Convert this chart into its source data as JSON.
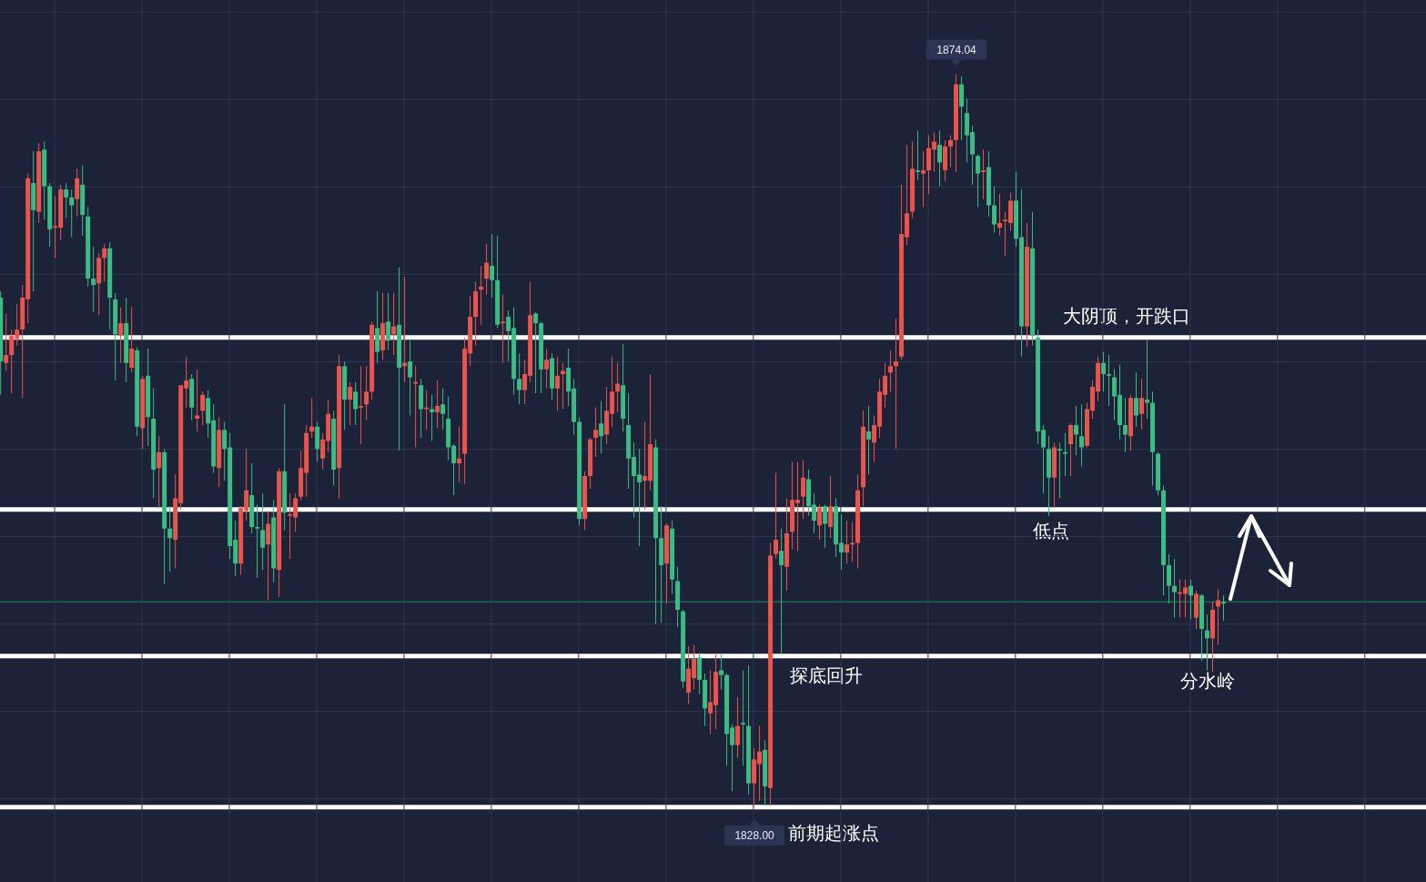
{
  "chart_data": {
    "type": "candlestick",
    "categories": [
      null,
      null,
      null,
      null,
      null,
      null,
      null,
      null,
      null,
      null,
      null,
      null,
      null,
      null,
      null,
      null,
      null,
      null,
      null,
      null,
      null,
      null,
      null,
      null,
      null,
      null,
      null,
      null,
      null,
      null,
      null,
      null,
      null,
      null,
      null,
      null,
      null,
      null,
      null,
      null,
      null,
      null,
      null,
      null,
      null,
      null,
      null,
      null,
      null,
      null,
      null,
      null,
      null,
      null,
      null,
      null,
      null,
      null,
      null,
      null,
      null,
      null,
      null,
      null,
      null,
      null,
      null,
      null,
      null,
      null,
      null,
      null,
      null,
      null,
      null,
      null,
      null,
      null,
      null,
      null,
      null,
      null,
      null,
      null,
      null,
      null,
      null,
      null,
      null,
      null,
      null,
      null,
      null,
      null,
      null,
      null,
      null,
      null,
      null,
      null,
      null,
      null,
      null,
      null,
      null,
      null,
      null,
      null,
      null,
      null,
      null,
      null,
      null,
      null,
      null,
      null,
      null,
      null,
      null,
      null,
      null,
      null,
      null,
      null,
      null,
      null,
      null,
      null,
      null,
      null,
      null,
      null,
      null,
      null,
      null,
      null,
      null,
      null,
      null,
      null,
      null,
      null,
      null,
      null,
      null,
      null,
      null,
      null,
      null,
      null,
      null,
      null,
      null,
      null,
      null,
      null,
      null,
      null,
      null,
      null,
      null,
      null,
      null,
      null,
      null,
      null,
      null,
      null,
      null,
      null,
      null,
      null,
      null,
      null,
      null,
      null,
      null,
      null,
      null,
      null,
      null,
      null,
      null,
      null,
      null,
      null,
      null,
      null,
      null,
      null,
      null,
      null,
      null,
      null,
      null,
      null,
      null,
      null,
      null,
      null,
      null,
      null,
      null,
      null,
      null,
      null,
      null,
      null,
      null,
      null,
      null,
      null,
      null,
      null,
      null,
      null,
      null,
      null,
      null,
      null,
      null,
      null,
      null,
      null,
      null
    ],
    "ohlc": [
      [
        1860.0,
        1860.4,
        1853.9,
        1856.0
      ],
      [
        1855.9,
        1859.0,
        1855.4,
        1856.4
      ],
      [
        1856.4,
        1858.0,
        1854.0,
        1857.6
      ],
      [
        1857.4,
        1859.6,
        1857.0,
        1858.0
      ],
      [
        1858.0,
        1860.8,
        1853.7,
        1860.0
      ],
      [
        1859.9,
        1867.8,
        1858.4,
        1867.5
      ],
      [
        1867.2,
        1869.2,
        1860.4,
        1865.5
      ],
      [
        1865.4,
        1869.7,
        1864.7,
        1869.2
      ],
      [
        1869.3,
        1869.8,
        1864.9,
        1867.0
      ],
      [
        1867.0,
        1867.2,
        1863.2,
        1864.3
      ],
      [
        1864.4,
        1866.4,
        1862.5,
        1864.5
      ],
      [
        1864.4,
        1867.1,
        1863.6,
        1866.8
      ],
      [
        1866.8,
        1867.2,
        1865.0,
        1866.3
      ],
      [
        1866.3,
        1866.8,
        1863.8,
        1865.8
      ],
      [
        1866.2,
        1868.1,
        1865.1,
        1867.5
      ],
      [
        1867.1,
        1868.3,
        1863.9,
        1865.2
      ],
      [
        1865.1,
        1865.7,
        1860.7,
        1861.2
      ],
      [
        1861.2,
        1863.2,
        1859.1,
        1860.8
      ],
      [
        1860.9,
        1862.8,
        1858.9,
        1862.5
      ],
      [
        1862.5,
        1863.4,
        1861.0,
        1863.1
      ],
      [
        1863.1,
        1863.5,
        1858.0,
        1860.0
      ],
      [
        1859.9,
        1860.3,
        1854.8,
        1857.7
      ],
      [
        1857.6,
        1859.4,
        1855.9,
        1858.4
      ],
      [
        1858.4,
        1860.0,
        1854.7,
        1855.9
      ],
      [
        1855.6,
        1859.4,
        1855.3,
        1856.8
      ],
      [
        1856.7,
        1856.9,
        1851.3,
        1851.9
      ],
      [
        1851.8,
        1855.1,
        1850.5,
        1854.9
      ],
      [
        1855.1,
        1856.8,
        1850.7,
        1852.5
      ],
      [
        1852.4,
        1854.3,
        1847.4,
        1849.2
      ],
      [
        1849.3,
        1851.3,
        1846.8,
        1850.3
      ],
      [
        1850.3,
        1850.5,
        1842.0,
        1845.5
      ],
      [
        1845.5,
        1846.9,
        1842.8,
        1844.9
      ],
      [
        1844.8,
        1848.9,
        1843.0,
        1847.4
      ],
      [
        1847.1,
        1854.5,
        1846.7,
        1854.5
      ],
      [
        1854.3,
        1856.3,
        1853.1,
        1854.8
      ],
      [
        1854.9,
        1855.2,
        1852.3,
        1853.1
      ],
      [
        1852.4,
        1855.5,
        1851.6,
        1852.6
      ],
      [
        1852.9,
        1854.1,
        1852.0,
        1853.9
      ],
      [
        1853.7,
        1854.2,
        1851.2,
        1852.1
      ],
      [
        1852.3,
        1853.3,
        1849.0,
        1849.4
      ],
      [
        1849.3,
        1852.5,
        1848.1,
        1851.7
      ],
      [
        1851.7,
        1852.2,
        1848.5,
        1850.5
      ],
      [
        1850.6,
        1851.5,
        1843.6,
        1844.4
      ],
      [
        1844.8,
        1846.0,
        1842.5,
        1843.3
      ],
      [
        1843.3,
        1846.9,
        1842.6,
        1846.8
      ],
      [
        1846.6,
        1850.5,
        1846.0,
        1847.9
      ],
      [
        1847.6,
        1849.6,
        1845.2,
        1845.6
      ],
      [
        1845.6,
        1847.0,
        1842.4,
        1845.5
      ],
      [
        1845.4,
        1847.7,
        1842.9,
        1844.3
      ],
      [
        1844.5,
        1846.6,
        1841.0,
        1845.8
      ],
      [
        1846.2,
        1847.3,
        1842.1,
        1843.0
      ],
      [
        1842.9,
        1849.3,
        1841.2,
        1849.1
      ],
      [
        1849.1,
        1853.3,
        1845.4,
        1846.5
      ],
      [
        1846.3,
        1847.7,
        1843.6,
        1846.4
      ],
      [
        1846.2,
        1847.7,
        1845.3,
        1847.4
      ],
      [
        1847.5,
        1850.4,
        1847.3,
        1849.3
      ],
      [
        1849.0,
        1852.0,
        1847.5,
        1851.5
      ],
      [
        1851.6,
        1853.7,
        1851.2,
        1851.9
      ],
      [
        1851.9,
        1852.2,
        1849.7,
        1850.5
      ],
      [
        1849.9,
        1851.5,
        1849.2,
        1851.1
      ],
      [
        1851.0,
        1853.6,
        1850.3,
        1852.7
      ],
      [
        1852.4,
        1852.9,
        1848.2,
        1849.2
      ],
      [
        1849.3,
        1856.4,
        1847.4,
        1855.7
      ],
      [
        1855.7,
        1856.0,
        1851.7,
        1853.6
      ],
      [
        1853.6,
        1854.7,
        1852.0,
        1854.4
      ],
      [
        1854.1,
        1854.7,
        1852.0,
        1853.0
      ],
      [
        1853.1,
        1855.7,
        1850.8,
        1853.2
      ],
      [
        1853.3,
        1855.7,
        1852.3,
        1854.1
      ],
      [
        1854.1,
        1858.5,
        1853.6,
        1858.3
      ],
      [
        1858.1,
        1860.4,
        1855.9,
        1856.6
      ],
      [
        1856.7,
        1860.3,
        1856.1,
        1858.4
      ],
      [
        1858.5,
        1860.3,
        1856.7,
        1857.3
      ],
      [
        1857.7,
        1860.3,
        1856.4,
        1858.2
      ],
      [
        1858.3,
        1861.9,
        1850.4,
        1855.6
      ],
      [
        1855.7,
        1861.3,
        1854.7,
        1855.9
      ],
      [
        1856.0,
        1857.3,
        1852.6,
        1855.0
      ],
      [
        1854.6,
        1855.7,
        1850.6,
        1854.7
      ],
      [
        1854.5,
        1854.9,
        1851.2,
        1853.0
      ],
      [
        1853.0,
        1854.2,
        1851.7,
        1853.1
      ],
      [
        1853.0,
        1853.9,
        1851.0,
        1852.8
      ],
      [
        1852.8,
        1854.8,
        1851.8,
        1853.2
      ],
      [
        1853.3,
        1854.3,
        1851.7,
        1852.7
      ],
      [
        1852.4,
        1853.8,
        1849.8,
        1850.6
      ],
      [
        1850.7,
        1850.8,
        1847.6,
        1849.6
      ],
      [
        1849.6,
        1851.9,
        1848.4,
        1849.9
      ],
      [
        1850.2,
        1857.5,
        1848.3,
        1856.8
      ],
      [
        1856.5,
        1860.1,
        1855.7,
        1858.8
      ],
      [
        1858.8,
        1861.0,
        1857.0,
        1860.4
      ],
      [
        1860.5,
        1862.0,
        1858.3,
        1860.7
      ],
      [
        1861.2,
        1863.4,
        1860.2,
        1862.2
      ],
      [
        1862.0,
        1864.0,
        1860.0,
        1861.1
      ],
      [
        1861.1,
        1863.9,
        1858.1,
        1858.3
      ],
      [
        1858.4,
        1860.2,
        1855.9,
        1858.5
      ],
      [
        1858.8,
        1859.2,
        1856.0,
        1857.9
      ],
      [
        1858.1,
        1859.4,
        1853.9,
        1854.9
      ],
      [
        1854.9,
        1856.5,
        1853.3,
        1854.2
      ],
      [
        1854.2,
        1856.1,
        1853.3,
        1855.2
      ],
      [
        1855.1,
        1861.0,
        1854.7,
        1858.9
      ],
      [
        1859.0,
        1859.1,
        1854.0,
        1858.4
      ],
      [
        1858.4,
        1858.5,
        1854.0,
        1855.5
      ],
      [
        1855.5,
        1856.8,
        1854.3,
        1856.1
      ],
      [
        1856.2,
        1856.5,
        1853.6,
        1854.3
      ],
      [
        1854.3,
        1856.3,
        1852.9,
        1855.1
      ],
      [
        1855.2,
        1855.9,
        1853.0,
        1855.4
      ],
      [
        1855.6,
        1856.8,
        1853.2,
        1854.1
      ],
      [
        1854.3,
        1854.9,
        1851.4,
        1852.2
      ],
      [
        1852.2,
        1852.5,
        1845.7,
        1846.1
      ],
      [
        1846.1,
        1849.1,
        1845.4,
        1848.8
      ],
      [
        1848.8,
        1851.2,
        1848.0,
        1851.1
      ],
      [
        1851.2,
        1853.1,
        1850.0,
        1851.7
      ],
      [
        1852.1,
        1853.5,
        1850.2,
        1851.3
      ],
      [
        1851.4,
        1854.4,
        1850.8,
        1852.9
      ],
      [
        1852.7,
        1856.3,
        1851.9,
        1854.1
      ],
      [
        1854.1,
        1855.9,
        1852.8,
        1854.6
      ],
      [
        1854.5,
        1857.1,
        1851.6,
        1852.4
      ],
      [
        1852.0,
        1854.0,
        1848.0,
        1849.9
      ],
      [
        1850.0,
        1850.9,
        1846.2,
        1848.8
      ],
      [
        1848.9,
        1850.5,
        1844.4,
        1848.4
      ],
      [
        1848.5,
        1852.2,
        1846.7,
        1848.8
      ],
      [
        1848.5,
        1855.2,
        1847.9,
        1850.8
      ],
      [
        1850.6,
        1851.1,
        1839.5,
        1844.9
      ],
      [
        1844.9,
        1846.9,
        1839.6,
        1843.2
      ],
      [
        1843.3,
        1845.8,
        1840.8,
        1845.7
      ],
      [
        1845.5,
        1846.0,
        1841.4,
        1842.3
      ],
      [
        1842.2,
        1843.1,
        1839.3,
        1840.4
      ],
      [
        1840.3,
        1840.4,
        1835.5,
        1835.9
      ],
      [
        1835.2,
        1838.1,
        1834.5,
        1836.7
      ],
      [
        1836.1,
        1838.2,
        1835.4,
        1837.3
      ],
      [
        1837.4,
        1837.7,
        1835.1,
        1836.0
      ],
      [
        1836.0,
        1836.4,
        1833.1,
        1834.2
      ],
      [
        1833.9,
        1836.6,
        1832.6,
        1834.6
      ],
      [
        1834.4,
        1837.7,
        1832.9,
        1836.5
      ],
      [
        1836.6,
        1837.6,
        1835.4,
        1836.3
      ],
      [
        1836.3,
        1836.4,
        1830.6,
        1832.6
      ],
      [
        1833.0,
        1833.2,
        1829.0,
        1831.9
      ],
      [
        1831.9,
        1834.9,
        1831.1,
        1833.1
      ],
      [
        1833.3,
        1836.6,
        1830.6,
        1833.2
      ],
      [
        1833.1,
        1836.9,
        1828.8,
        1829.5
      ],
      [
        1829.5,
        1831.7,
        1828.0,
        1831.0
      ],
      [
        1830.7,
        1833.1,
        1828.4,
        1831.5
      ],
      [
        1831.6,
        1832.2,
        1828.1,
        1829.3
      ],
      [
        1829.2,
        1844.6,
        1828.1,
        1843.8
      ],
      [
        1843.9,
        1849.0,
        1843.6,
        1844.8
      ],
      [
        1844.1,
        1845.5,
        1837.6,
        1843.2
      ],
      [
        1843.1,
        1847.4,
        1841.6,
        1845.2
      ],
      [
        1845.3,
        1849.7,
        1844.2,
        1847.3
      ],
      [
        1847.1,
        1849.7,
        1844.1,
        1847.3
      ],
      [
        1847.5,
        1849.8,
        1846.1,
        1848.7
      ],
      [
        1848.6,
        1849.2,
        1846.3,
        1846.9
      ],
      [
        1847.0,
        1847.7,
        1845.2,
        1846.0
      ],
      [
        1845.7,
        1847.0,
        1844.8,
        1846.8
      ],
      [
        1846.9,
        1847.0,
        1844.3,
        1845.8
      ],
      [
        1845.6,
        1848.8,
        1844.9,
        1846.9
      ],
      [
        1846.9,
        1847.4,
        1843.7,
        1844.5
      ],
      [
        1844.6,
        1846.4,
        1842.9,
        1844.0
      ],
      [
        1844.0,
        1846.0,
        1843.3,
        1844.5
      ],
      [
        1844.5,
        1845.9,
        1843.4,
        1844.6
      ],
      [
        1844.6,
        1848.9,
        1843.0,
        1847.9
      ],
      [
        1848.1,
        1852.9,
        1846.9,
        1851.9
      ],
      [
        1851.6,
        1853.2,
        1848.9,
        1851.1
      ],
      [
        1850.9,
        1852.6,
        1849.7,
        1852.0
      ],
      [
        1851.9,
        1854.9,
        1851.2,
        1854.1
      ],
      [
        1853.9,
        1855.9,
        1853.1,
        1855.1
      ],
      [
        1855.3,
        1856.7,
        1854.1,
        1855.7
      ],
      [
        1855.7,
        1858.7,
        1850.5,
        1856.0
      ],
      [
        1856.3,
        1867.1,
        1856.1,
        1864.0
      ],
      [
        1863.8,
        1869.6,
        1863.3,
        1865.3
      ],
      [
        1865.4,
        1869.8,
        1865.0,
        1868.1
      ],
      [
        1868.0,
        1870.5,
        1867.4,
        1867.9
      ],
      [
        1867.8,
        1869.2,
        1865.7,
        1868.0
      ],
      [
        1868.0,
        1870.2,
        1866.5,
        1869.4
      ],
      [
        1869.3,
        1870.4,
        1867.9,
        1869.8
      ],
      [
        1869.6,
        1870.5,
        1867.0,
        1868.5
      ],
      [
        1868.0,
        1869.9,
        1867.3,
        1869.5
      ],
      [
        1869.5,
        1870.2,
        1868.2,
        1869.9
      ],
      [
        1869.9,
        1874.04,
        1867.9,
        1873.4
      ],
      [
        1873.4,
        1873.9,
        1869.9,
        1872.0
      ],
      [
        1871.6,
        1872.5,
        1868.5,
        1870.2
      ],
      [
        1870.4,
        1870.8,
        1867.1,
        1869.0
      ],
      [
        1868.9,
        1869.0,
        1865.7,
        1867.8
      ],
      [
        1867.9,
        1869.3,
        1866.2,
        1868.0
      ],
      [
        1868.2,
        1869.2,
        1865.1,
        1865.8
      ],
      [
        1865.8,
        1867.0,
        1864.1,
        1864.6
      ],
      [
        1864.4,
        1866.5,
        1863.9,
        1864.7
      ],
      [
        1864.8,
        1865.4,
        1862.6,
        1864.9
      ],
      [
        1864.7,
        1866.6,
        1864.2,
        1866.1
      ],
      [
        1866.1,
        1867.9,
        1863.2,
        1863.7
      ],
      [
        1863.8,
        1866.8,
        1856.3,
        1858.2
      ],
      [
        1858.2,
        1864.7,
        1856.9,
        1863.2
      ],
      [
        1863.1,
        1865.4,
        1857.0,
        1857.6
      ],
      [
        1857.5,
        1858.0,
        1850.8,
        1851.6
      ],
      [
        1851.7,
        1852.0,
        1847.7,
        1850.6
      ],
      [
        1850.5,
        1851.3,
        1846.3,
        1848.7
      ],
      [
        1848.7,
        1850.9,
        1846.8,
        1850.6
      ],
      [
        1850.5,
        1850.9,
        1847.4,
        1850.4
      ],
      [
        1850.3,
        1851.5,
        1848.8,
        1850.2
      ],
      [
        1850.8,
        1852.1,
        1848.8,
        1852.0
      ],
      [
        1852.0,
        1853.2,
        1850.1,
        1851.4
      ],
      [
        1851.3,
        1853.3,
        1849.4,
        1850.6
      ],
      [
        1850.7,
        1853.4,
        1850.6,
        1853.0
      ],
      [
        1852.9,
        1854.8,
        1852.4,
        1854.4
      ],
      [
        1854.1,
        1856.3,
        1853.5,
        1855.9
      ],
      [
        1855.9,
        1856.6,
        1854.1,
        1855.2
      ],
      [
        1855.2,
        1856.4,
        1853.2,
        1855.1
      ],
      [
        1855.0,
        1855.5,
        1852.3,
        1853.8
      ],
      [
        1853.9,
        1855.8,
        1851.1,
        1852.0
      ],
      [
        1852.0,
        1853.7,
        1850.3,
        1851.4
      ],
      [
        1851.3,
        1853.9,
        1850.4,
        1853.7
      ],
      [
        1853.7,
        1855.3,
        1851.9,
        1852.6
      ],
      [
        1852.7,
        1854.9,
        1851.7,
        1853.7
      ],
      [
        1853.6,
        1857.3,
        1852.4,
        1853.4
      ],
      [
        1853.4,
        1854.1,
        1848.2,
        1850.3
      ],
      [
        1850.2,
        1850.3,
        1847.6,
        1847.9
      ],
      [
        1847.9,
        1848.2,
        1841.3,
        1843.2
      ],
      [
        1843.2,
        1843.9,
        1840.8,
        1841.9
      ],
      [
        1841.9,
        1843.6,
        1839.9,
        1841.5
      ],
      [
        1841.4,
        1842.3,
        1839.9,
        1841.5
      ],
      [
        1841.4,
        1842.3,
        1839.9,
        1841.8
      ],
      [
        1841.9,
        1842.3,
        1839.8,
        1841.3
      ],
      [
        1839.9,
        1841.6,
        1839.2,
        1841.4
      ],
      [
        1841.3,
        1841.4,
        1837.2,
        1839.2
      ],
      [
        1839.1,
        1840.1,
        1836.6,
        1838.6
      ],
      [
        1838.6,
        1840.9,
        1836.5,
        1840.4
      ],
      [
        1840.6,
        1841.7,
        1838.2,
        1841.0
      ],
      [
        1840.9,
        1841.3,
        1839.7,
        1840.8
      ]
    ],
    "colors": [
      "#3dbb84",
      "#e8554e",
      "#e8554e",
      "#e8554e",
      "#e8554e",
      "#e8554e",
      "#3dbb84",
      "#e8554e",
      "#3dbb84",
      "#3dbb84",
      "#e8554e",
      "#e8554e",
      "#3dbb84",
      "#3dbb84",
      "#e8554e",
      "#3dbb84",
      "#3dbb84",
      "#3dbb84",
      "#e8554e",
      "#e8554e",
      "#3dbb84",
      "#3dbb84",
      "#e8554e",
      "#3dbb84",
      "#e8554e",
      "#3dbb84",
      "#e8554e",
      "#3dbb84",
      "#3dbb84",
      "#e8554e",
      "#3dbb84",
      "#3dbb84",
      "#e8554e",
      "#e8554e",
      "#e8554e",
      "#3dbb84",
      "#e8554e",
      "#e8554e",
      "#3dbb84",
      "#3dbb84",
      "#e8554e",
      "#3dbb84",
      "#3dbb84",
      "#3dbb84",
      "#e8554e",
      "#e8554e",
      "#3dbb84",
      "#3dbb84",
      "#3dbb84",
      "#e8554e",
      "#3dbb84",
      "#e8554e",
      "#3dbb84",
      "#e8554e",
      "#e8554e",
      "#e8554e",
      "#e8554e",
      "#e8554e",
      "#3dbb84",
      "#e8554e",
      "#e8554e",
      "#3dbb84",
      "#e8554e",
      "#3dbb84",
      "#e8554e",
      "#3dbb84",
      "#e8554e",
      "#e8554e",
      "#e8554e",
      "#3dbb84",
      "#e8554e",
      "#3dbb84",
      "#e8554e",
      "#3dbb84",
      "#e8554e",
      "#3dbb84",
      "#e8554e",
      "#3dbb84",
      "#e8554e",
      "#3dbb84",
      "#e8554e",
      "#3dbb84",
      "#3dbb84",
      "#3dbb84",
      "#e8554e",
      "#e8554e",
      "#e8554e",
      "#e8554e",
      "#e8554e",
      "#e8554e",
      "#3dbb84",
      "#3dbb84",
      "#e8554e",
      "#3dbb84",
      "#3dbb84",
      "#3dbb84",
      "#e8554e",
      "#e8554e",
      "#3dbb84",
      "#3dbb84",
      "#e8554e",
      "#3dbb84",
      "#e8554e",
      "#e8554e",
      "#3dbb84",
      "#3dbb84",
      "#3dbb84",
      "#e8554e",
      "#e8554e",
      "#e8554e",
      "#3dbb84",
      "#e8554e",
      "#e8554e",
      "#e8554e",
      "#3dbb84",
      "#3dbb84",
      "#3dbb84",
      "#3dbb84",
      "#e8554e",
      "#e8554e",
      "#3dbb84",
      "#3dbb84",
      "#e8554e",
      "#3dbb84",
      "#3dbb84",
      "#3dbb84",
      "#e8554e",
      "#e8554e",
      "#3dbb84",
      "#3dbb84",
      "#e8554e",
      "#e8554e",
      "#3dbb84",
      "#3dbb84",
      "#3dbb84",
      "#e8554e",
      "#3dbb84",
      "#3dbb84",
      "#e8554e",
      "#e8554e",
      "#3dbb84",
      "#e8554e",
      "#e8554e",
      "#3dbb84",
      "#e8554e",
      "#e8554e",
      "#e8554e",
      "#e8554e",
      "#3dbb84",
      "#3dbb84",
      "#e8554e",
      "#3dbb84",
      "#e8554e",
      "#3dbb84",
      "#3dbb84",
      "#e8554e",
      "#e8554e",
      "#e8554e",
      "#e8554e",
      "#3dbb84",
      "#e8554e",
      "#e8554e",
      "#e8554e",
      "#e8554e",
      "#e8554e",
      "#e8554e",
      "#e8554e",
      "#e8554e",
      "#3dbb84",
      "#e8554e",
      "#e8554e",
      "#e8554e",
      "#3dbb84",
      "#e8554e",
      "#e8554e",
      "#e8554e",
      "#3dbb84",
      "#3dbb84",
      "#3dbb84",
      "#3dbb84",
      "#e8554e",
      "#3dbb84",
      "#3dbb84",
      "#e8554e",
      "#e8554e",
      "#e8554e",
      "#3dbb84",
      "#3dbb84",
      "#e8554e",
      "#3dbb84",
      "#3dbb84",
      "#3dbb84",
      "#3dbb84",
      "#e8554e",
      "#3dbb84",
      "#3dbb84",
      "#e8554e",
      "#3dbb84",
      "#3dbb84",
      "#e8554e",
      "#e8554e",
      "#e8554e",
      "#3dbb84",
      "#3dbb84",
      "#3dbb84",
      "#3dbb84",
      "#3dbb84",
      "#e8554e",
      "#3dbb84",
      "#e8554e",
      "#3dbb84",
      "#3dbb84",
      "#3dbb84",
      "#3dbb84",
      "#3dbb84",
      "#3dbb84",
      "#e8554e",
      "#e8554e",
      "#3dbb84",
      "#e8554e",
      "#3dbb84",
      "#3dbb84",
      "#e8554e",
      "#e8554e",
      "#3dbb84"
    ],
    "ylim": [
      1823.3,
      1878.7
    ],
    "yticks": [
      {
        "value": 1828.52,
        "label": null
      },
      {
        "value": 1834.01,
        "label": null
      },
      {
        "value": 1839.5,
        "label": null
      },
      {
        "value": 1844.99,
        "label": null
      },
      {
        "value": 1850.48,
        "label": null
      },
      {
        "value": 1855.97,
        "label": null
      },
      {
        "value": 1861.47,
        "label": null
      },
      {
        "value": 1866.96,
        "label": null
      },
      {
        "value": 1872.45,
        "label": null
      },
      {
        "value": 1877.94,
        "label": null
      }
    ],
    "tick_labels": false,
    "grid": true,
    "ref_lines": [
      {
        "axis": "y",
        "value": 1857.5,
        "label": "大阴顶，开跌口",
        "color": "#ffffff"
      },
      {
        "axis": "y",
        "value": 1846.7,
        "label": "低点",
        "color": "#ffffff"
      },
      {
        "axis": "y",
        "value": 1837.5,
        "label": "探底回升",
        "color": "#ffffff"
      },
      {
        "axis": "y",
        "value": 1828.0,
        "label": "前期起涨点",
        "color": "#ffffff"
      },
      {
        "axis": "y",
        "value": 1840.9,
        "color": "#1f8a5e"
      }
    ],
    "annotations": [
      {
        "text": "1874.04",
        "y": 1874.04
      },
      {
        "text": "1828.00",
        "y": 1828.0
      },
      "分水岭"
    ]
  }
}
